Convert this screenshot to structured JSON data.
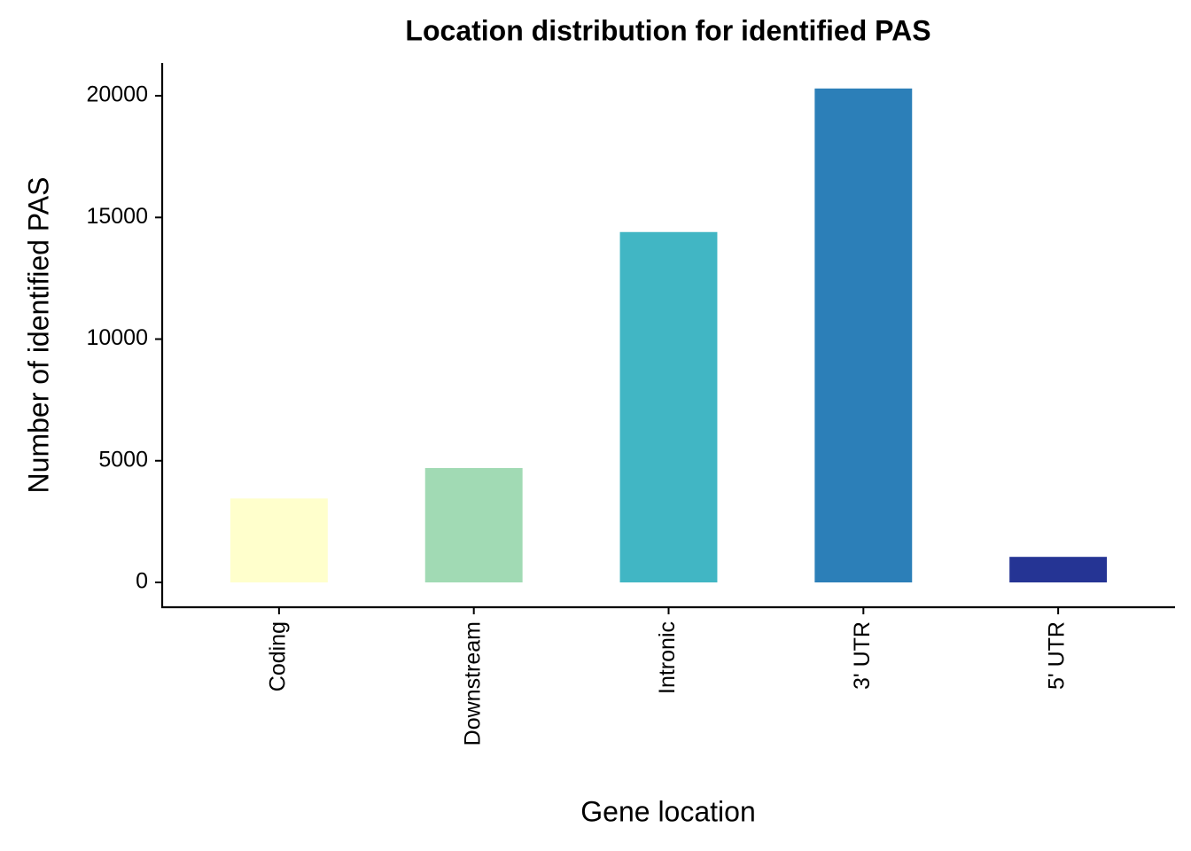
{
  "chart_data": {
    "type": "bar",
    "title": "Location distribution for identified PAS",
    "x_label": "Gene location",
    "y_label": "Number of identified PAS",
    "categories": [
      "Coding",
      "Downstream",
      "Intronic",
      "3' UTR",
      "5' UTR"
    ],
    "values": [
      3450,
      4700,
      14400,
      20300,
      1050
    ],
    "colors": [
      "#FFFFCC",
      "#A1DAB4",
      "#41B6C4",
      "#2C7FB8",
      "#253494"
    ],
    "ylim": [
      -1020,
      21350
    ],
    "yticks": [
      0,
      5000,
      10000,
      15000,
      20000
    ],
    "grid": false
  }
}
